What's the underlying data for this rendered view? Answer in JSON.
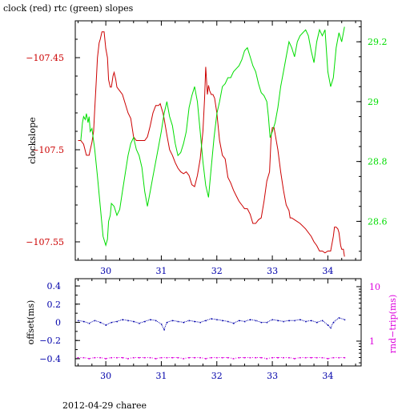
{
  "title": "clock (red) rtc (green) slopes",
  "footer": "2012-04-29 charee",
  "colors": {
    "clock": "#cc0000",
    "rtc": "#00dd00",
    "offset": "#0000aa",
    "rtt": "#dd00dd",
    "axis": "#000000"
  },
  "chart_data": [
    {
      "type": "line",
      "title": "clock (red) rtc (green) slopes",
      "xlabel": "",
      "ylabel": "clockslope",
      "y2label": "",
      "xlim": [
        29.45,
        34.6
      ],
      "ylim": [
        -107.56,
        -107.43
      ],
      "y2lim": [
        28.47,
        29.27
      ],
      "x_ticks": [
        30,
        31,
        32,
        33,
        34
      ],
      "x_tick_labels": [
        "30",
        "31",
        "32",
        "33",
        "34"
      ],
      "y_ticks": [
        -107.45,
        -107.5,
        -107.55
      ],
      "y_tick_labels": [
        "−107.45",
        "−107.5",
        "−107.55"
      ],
      "y2_ticks": [
        28.6,
        28.8,
        29.0,
        29.2
      ],
      "y2_tick_labels": [
        "28.6",
        "28.8",
        "29",
        "29.2"
      ],
      "series": [
        {
          "name": "clock",
          "axis": "left",
          "color": "#cc0000",
          "x": [
            29.5,
            29.55,
            29.6,
            29.65,
            29.7,
            29.72,
            29.75,
            29.78,
            29.8,
            29.83,
            29.85,
            29.88,
            29.9,
            29.93,
            29.95,
            29.97,
            30.0,
            30.03,
            30.05,
            30.08,
            30.1,
            30.13,
            30.15,
            30.18,
            30.2,
            30.25,
            30.3,
            30.35,
            30.4,
            30.45,
            30.5,
            30.55,
            30.6,
            30.65,
            30.7,
            30.75,
            30.8,
            30.85,
            30.9,
            30.95,
            30.98,
            31.0,
            31.03,
            31.05,
            31.1,
            31.15,
            31.2,
            31.25,
            31.3,
            31.35,
            31.4,
            31.45,
            31.5,
            31.55,
            31.6,
            31.65,
            31.7,
            31.75,
            31.78,
            31.8,
            31.83,
            31.85,
            31.87,
            31.9,
            31.93,
            31.96,
            32.0,
            32.05,
            32.1,
            32.15,
            32.2,
            32.25,
            32.3,
            32.35,
            32.4,
            32.45,
            32.5,
            32.55,
            32.6,
            32.65,
            32.7,
            32.75,
            32.8,
            32.85,
            32.9,
            32.95,
            32.98,
            33.0,
            33.03,
            33.06,
            33.1,
            33.15,
            33.2,
            33.25,
            33.3,
            33.32,
            33.35,
            33.4,
            33.5,
            33.6,
            33.7,
            33.75,
            33.8,
            33.85,
            33.9,
            33.95,
            34.0,
            34.05,
            34.1,
            34.12,
            34.15,
            34.18,
            34.2,
            34.23,
            34.25,
            34.28,
            34.3
          ],
          "y": [
            -107.495,
            -107.495,
            -107.497,
            -107.503,
            -107.503,
            -107.5,
            -107.496,
            -107.49,
            -107.478,
            -107.462,
            -107.45,
            -107.442,
            -107.44,
            -107.436,
            -107.436,
            -107.436,
            -107.445,
            -107.45,
            -107.462,
            -107.466,
            -107.466,
            -107.46,
            -107.458,
            -107.462,
            -107.466,
            -107.468,
            -107.47,
            -107.475,
            -107.48,
            -107.483,
            -107.493,
            -107.495,
            -107.495,
            -107.495,
            -107.495,
            -107.493,
            -107.487,
            -107.48,
            -107.476,
            -107.476,
            -107.475,
            -107.477,
            -107.48,
            -107.483,
            -107.492,
            -107.5,
            -107.503,
            -107.507,
            -107.51,
            -107.512,
            -107.513,
            -107.512,
            -107.514,
            -107.519,
            -107.52,
            -107.514,
            -107.505,
            -107.49,
            -107.472,
            -107.455,
            -107.47,
            -107.465,
            -107.468,
            -107.47,
            -107.47,
            -107.472,
            -107.48,
            -107.495,
            -107.503,
            -107.505,
            -107.515,
            -107.518,
            -107.522,
            -107.525,
            -107.528,
            -107.53,
            -107.532,
            -107.532,
            -107.535,
            -107.54,
            -107.54,
            -107.538,
            -107.537,
            -107.528,
            -107.517,
            -107.512,
            -107.492,
            -107.488,
            -107.488,
            -107.493,
            -107.5,
            -107.512,
            -107.522,
            -107.53,
            -107.533,
            -107.537,
            -107.537,
            -107.538,
            -107.54,
            -107.543,
            -107.547,
            -107.55,
            -107.552,
            -107.555,
            -107.555,
            -107.556,
            -107.555,
            -107.555,
            -107.547,
            -107.542,
            -107.542,
            -107.543,
            -107.545,
            -107.552,
            -107.554,
            -107.554,
            -107.558
          ]
        },
        {
          "name": "rtc",
          "axis": "right",
          "color": "#00dd00",
          "x": [
            29.55,
            29.58,
            29.6,
            29.63,
            29.65,
            29.68,
            29.7,
            29.72,
            29.75,
            29.8,
            29.85,
            29.9,
            29.95,
            30.0,
            30.03,
            30.05,
            30.08,
            30.1,
            30.15,
            30.2,
            30.25,
            30.3,
            30.35,
            30.4,
            30.45,
            30.5,
            30.55,
            30.6,
            30.65,
            30.7,
            30.75,
            30.8,
            30.85,
            30.9,
            30.95,
            31.0,
            31.05,
            31.1,
            31.15,
            31.2,
            31.25,
            31.3,
            31.35,
            31.4,
            31.45,
            31.5,
            31.55,
            31.6,
            31.65,
            31.7,
            31.75,
            31.8,
            31.85,
            31.9,
            31.95,
            32.0,
            32.05,
            32.1,
            32.15,
            32.2,
            32.25,
            32.3,
            32.35,
            32.4,
            32.45,
            32.5,
            32.55,
            32.6,
            32.65,
            32.7,
            32.75,
            32.8,
            32.85,
            32.9,
            32.93,
            32.96,
            33.0,
            33.05,
            33.1,
            33.15,
            33.2,
            33.25,
            33.3,
            33.35,
            33.4,
            33.45,
            33.5,
            33.55,
            33.6,
            33.65,
            33.7,
            33.75,
            33.8,
            33.85,
            33.9,
            33.95,
            34.0,
            34.05,
            34.1,
            34.15,
            34.2,
            34.25,
            34.3
          ],
          "y": [
            28.87,
            28.93,
            28.95,
            28.94,
            28.96,
            28.93,
            28.95,
            28.9,
            28.91,
            28.84,
            28.75,
            28.65,
            28.55,
            28.52,
            28.54,
            28.6,
            28.62,
            28.66,
            28.65,
            28.62,
            28.64,
            28.7,
            28.76,
            28.82,
            28.86,
            28.88,
            28.84,
            28.82,
            28.78,
            28.7,
            28.65,
            28.7,
            28.75,
            28.8,
            28.85,
            28.9,
            28.96,
            29.0,
            28.95,
            28.92,
            28.86,
            28.82,
            28.83,
            28.86,
            28.9,
            28.98,
            29.02,
            29.05,
            29.0,
            28.9,
            28.8,
            28.72,
            28.68,
            28.78,
            28.88,
            28.96,
            29.0,
            29.05,
            29.06,
            29.08,
            29.08,
            29.1,
            29.11,
            29.12,
            29.14,
            29.17,
            29.18,
            29.15,
            29.12,
            29.1,
            29.06,
            29.03,
            29.02,
            29.0,
            28.95,
            28.88,
            28.9,
            28.93,
            28.98,
            29.05,
            29.1,
            29.15,
            29.2,
            29.18,
            29.15,
            29.2,
            29.22,
            29.23,
            29.24,
            29.22,
            29.17,
            29.13,
            29.2,
            29.24,
            29.22,
            29.24,
            29.1,
            29.05,
            29.08,
            29.18,
            29.23,
            29.2,
            29.25
          ]
        }
      ]
    },
    {
      "type": "scatter",
      "xlabel": "",
      "ylabel": "offset(ms)",
      "y2label": "rnd−trip(ms)",
      "xlim": [
        29.45,
        34.6
      ],
      "ylim": [
        -0.48,
        0.48
      ],
      "y2lim": [
        0.35,
        14
      ],
      "y2_scale": "log",
      "x_ticks": [
        30,
        31,
        32,
        33,
        34
      ],
      "x_tick_labels": [
        "30",
        "31",
        "32",
        "33",
        "34"
      ],
      "y_ticks": [
        0.4,
        0.2,
        0,
        -0.2,
        -0.4
      ],
      "y_tick_labels": [
        "0.4",
        "0.2",
        "0",
        "−0.2",
        "−0.4"
      ],
      "y2_ticks": [
        10,
        1
      ],
      "y2_tick_labels": [
        "10",
        "1"
      ],
      "series": [
        {
          "name": "offset",
          "axis": "left",
          "color": "#0000aa",
          "x": [
            29.5,
            29.6,
            29.7,
            29.8,
            29.9,
            30.0,
            30.1,
            30.2,
            30.3,
            30.4,
            30.5,
            30.6,
            30.7,
            30.8,
            30.9,
            31.0,
            31.05,
            31.1,
            31.2,
            31.3,
            31.4,
            31.5,
            31.6,
            31.7,
            31.8,
            31.9,
            32.0,
            32.1,
            32.2,
            32.3,
            32.4,
            32.5,
            32.6,
            32.7,
            32.8,
            32.9,
            33.0,
            33.1,
            33.2,
            33.3,
            33.4,
            33.5,
            33.6,
            33.7,
            33.8,
            33.9,
            34.0,
            34.05,
            34.1,
            34.2,
            34.3
          ],
          "y": [
            0.02,
            0.01,
            -0.01,
            0.02,
            0.0,
            -0.03,
            0.0,
            0.01,
            0.03,
            0.02,
            0.01,
            -0.01,
            0.01,
            0.03,
            0.02,
            -0.02,
            -0.08,
            0.0,
            0.02,
            0.01,
            0.0,
            0.02,
            0.01,
            0.0,
            0.02,
            0.04,
            0.03,
            0.02,
            0.01,
            -0.01,
            0.02,
            0.01,
            0.03,
            0.02,
            0.0,
            0.0,
            0.03,
            0.02,
            0.01,
            0.02,
            0.02,
            0.03,
            0.01,
            0.02,
            0.0,
            0.02,
            -0.03,
            -0.06,
            0.0,
            0.05,
            0.03
          ]
        },
        {
          "name": "rtt",
          "axis": "right",
          "color": "#dd00dd",
          "x": [
            29.5,
            29.6,
            29.7,
            29.8,
            29.9,
            30.0,
            30.1,
            30.2,
            30.3,
            30.4,
            30.5,
            30.6,
            30.7,
            30.8,
            30.9,
            31.0,
            31.1,
            31.2,
            31.3,
            31.4,
            31.5,
            31.6,
            31.7,
            31.8,
            31.9,
            32.0,
            32.1,
            32.2,
            32.3,
            32.4,
            32.5,
            32.6,
            32.7,
            32.8,
            32.9,
            33.0,
            33.1,
            33.2,
            33.3,
            33.4,
            33.5,
            33.6,
            33.7,
            33.8,
            33.9,
            34.0,
            34.1,
            34.2,
            34.3
          ],
          "y": [
            0.5,
            0.5,
            0.48,
            0.5,
            0.5,
            0.48,
            0.5,
            0.5,
            0.5,
            0.48,
            0.5,
            0.5,
            0.5,
            0.5,
            0.48,
            0.5,
            0.5,
            0.5,
            0.5,
            0.48,
            0.5,
            0.5,
            0.5,
            0.48,
            0.5,
            0.5,
            0.5,
            0.5,
            0.48,
            0.5,
            0.5,
            0.5,
            0.5,
            0.5,
            0.48,
            0.5,
            0.5,
            0.5,
            0.5,
            0.48,
            0.5,
            0.5,
            0.5,
            0.5,
            0.5,
            0.48,
            0.5,
            0.5,
            0.5
          ]
        }
      ]
    }
  ]
}
